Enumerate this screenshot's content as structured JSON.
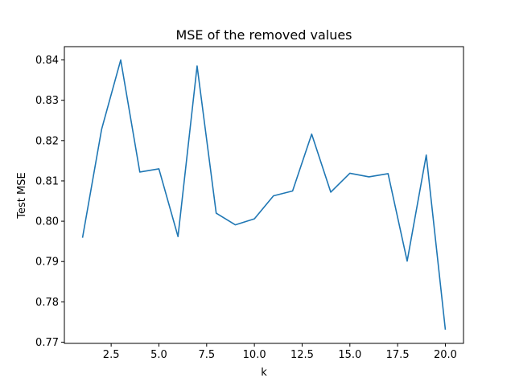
{
  "chart_data": {
    "type": "line",
    "title": "MSE of the removed values",
    "xlabel": "k",
    "ylabel": "Test MSE",
    "xlim": [
      0.05,
      20.95
    ],
    "ylim": [
      0.7697,
      0.8433
    ],
    "xticks": [
      2.5,
      5.0,
      7.5,
      10.0,
      12.5,
      15.0,
      17.5,
      20.0
    ],
    "xtick_labels": [
      "2.5",
      "5.0",
      "7.5",
      "10.0",
      "12.5",
      "15.0",
      "17.5",
      "20.0"
    ],
    "yticks": [
      0.77,
      0.78,
      0.79,
      0.8,
      0.81,
      0.82,
      0.83,
      0.84
    ],
    "ytick_labels": [
      "0.77",
      "0.78",
      "0.79",
      "0.80",
      "0.81",
      "0.82",
      "0.83",
      "0.84"
    ],
    "grid": false,
    "series": [
      {
        "color": "#1f77b4",
        "x": [
          1,
          2,
          3,
          4,
          5,
          6,
          7,
          8,
          9,
          10,
          11,
          12,
          13,
          14,
          15,
          16,
          17,
          18,
          19,
          20
        ],
        "y": [
          0.7959,
          0.8228,
          0.84,
          0.8122,
          0.813,
          0.7962,
          0.8385,
          0.802,
          0.7991,
          0.8006,
          0.8063,
          0.8075,
          0.8216,
          0.8072,
          0.8119,
          0.811,
          0.8118,
          0.7901,
          0.8164,
          0.7731
        ]
      }
    ]
  }
}
